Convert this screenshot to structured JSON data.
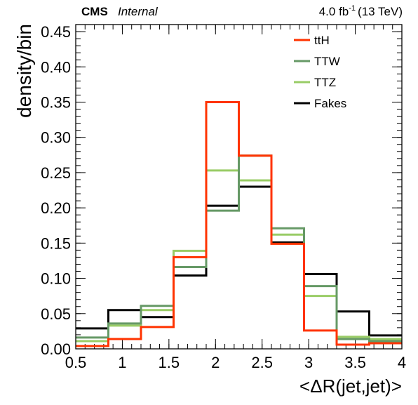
{
  "header": {
    "experiment": "CMS",
    "status": "Internal",
    "lumi_value": "4.0 fb",
    "lumi_exp": "-1",
    "lumi_energy": "(13 TeV)"
  },
  "chart_data": {
    "type": "step",
    "xlabel": "<ΔR(jet,jet)>",
    "ylabel": "density/bin",
    "xlim": [
      0.5,
      4.0
    ],
    "ylim": [
      0.0,
      0.46
    ],
    "xticks": [
      0.5,
      1,
      1.5,
      2,
      2.5,
      3,
      3.5,
      4
    ],
    "xtick_labels": [
      "0.5",
      "1",
      "1.5",
      "2",
      "2.5",
      "3",
      "3.5",
      "4"
    ],
    "yticks": [
      0,
      0.05,
      0.1,
      0.15,
      0.2,
      0.25,
      0.3,
      0.35,
      0.4,
      0.45
    ],
    "ytick_labels": [
      "0.00",
      "0.05",
      "0.10",
      "0.15",
      "0.20",
      "0.25",
      "0.30",
      "0.35",
      "0.40",
      "0.45"
    ],
    "legend_position": "top-right",
    "bin_edges": [
      0.5,
      0.85,
      1.2,
      1.55,
      1.9,
      2.25,
      2.6,
      2.95,
      3.3,
      3.65,
      4.0
    ],
    "series": [
      {
        "name": "Fakes",
        "color": "#000000",
        "values": [
          0.029,
          0.055,
          0.045,
          0.104,
          0.203,
          0.23,
          0.151,
          0.106,
          0.053,
          0.019
        ]
      },
      {
        "name": "TTZ",
        "color": "#99cc66",
        "values": [
          0.011,
          0.033,
          0.055,
          0.139,
          0.253,
          0.239,
          0.162,
          0.075,
          0.017,
          0.014
        ]
      },
      {
        "name": "TTW",
        "color": "#669966",
        "values": [
          0.016,
          0.036,
          0.061,
          0.116,
          0.196,
          0.274,
          0.171,
          0.089,
          0.014,
          0.011
        ]
      },
      {
        "name": "ttH",
        "color": "#ff3300",
        "values": [
          0.004,
          0.014,
          0.031,
          0.13,
          0.35,
          0.274,
          0.149,
          0.026,
          0.006,
          0.008
        ]
      }
    ],
    "legend_order": [
      "ttH",
      "TTW",
      "TTZ",
      "Fakes"
    ]
  }
}
